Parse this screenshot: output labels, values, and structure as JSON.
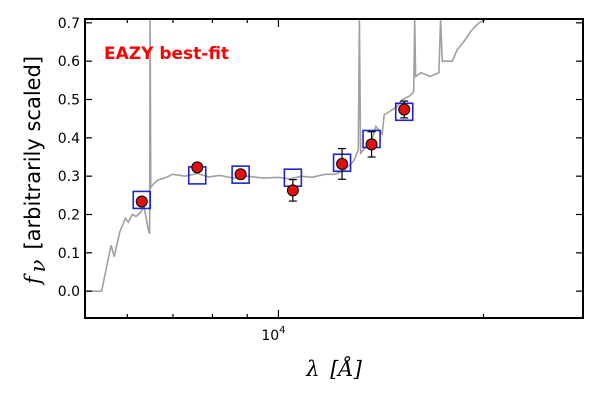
{
  "chart_data": {
    "type": "scatter",
    "title": "",
    "annotation": "EAZY best-fit",
    "xlabel": {
      "symbol": "λ",
      "unit": "[Å]"
    },
    "ylabel": {
      "symbol": "f",
      "subscript": "ν",
      "text": "[arbitrarily scaled]"
    },
    "xscale": "log",
    "xlim": [
      5200,
      28000
    ],
    "ylim": [
      -0.07,
      0.71
    ],
    "x_ticks": [
      {
        "value": 10000,
        "label": "10",
        "exponent": "4"
      }
    ],
    "y_ticks": [
      0.0,
      0.1,
      0.2,
      0.3,
      0.4,
      0.5,
      0.6,
      0.7
    ],
    "y_tick_labels": [
      "0.0",
      "0.1",
      "0.2",
      "0.3",
      "0.4",
      "0.5",
      "0.6",
      "0.7"
    ],
    "grid": false,
    "colors": {
      "template": "#a0a0a0",
      "model_box": "#1f24d0",
      "observed": "#e01010",
      "annotation": "#ff0000",
      "axis": "#000000"
    },
    "model_photometry": [
      {
        "x": 6300,
        "y": 0.238
      },
      {
        "x": 7600,
        "y": 0.302
      },
      {
        "x": 8800,
        "y": 0.304
      },
      {
        "x": 10500,
        "y": 0.296
      },
      {
        "x": 12400,
        "y": 0.335
      },
      {
        "x": 13700,
        "y": 0.397
      },
      {
        "x": 15300,
        "y": 0.468
      }
    ],
    "observed_photometry": [
      {
        "x": 6300,
        "y": 0.234,
        "err": 0.0
      },
      {
        "x": 7600,
        "y": 0.323,
        "err": 0.0
      },
      {
        "x": 8800,
        "y": 0.305,
        "err": 0.0
      },
      {
        "x": 10500,
        "y": 0.263,
        "err": 0.028
      },
      {
        "x": 12400,
        "y": 0.332,
        "err": 0.04
      },
      {
        "x": 13700,
        "y": 0.383,
        "err": 0.033
      },
      {
        "x": 15300,
        "y": 0.474,
        "err": 0.022
      }
    ],
    "template_sed": [
      [
        5200,
        0.0
      ],
      [
        5500,
        0.0
      ],
      [
        5680,
        0.12
      ],
      [
        5740,
        0.09
      ],
      [
        5850,
        0.155
      ],
      [
        5960,
        0.19
      ],
      [
        6020,
        0.18
      ],
      [
        6100,
        0.2
      ],
      [
        6180,
        0.195
      ],
      [
        6270,
        0.205
      ],
      [
        6350,
        0.22
      ],
      [
        6440,
        0.16
      ],
      [
        6470,
        0.15
      ],
      [
        6480,
        0.71
      ],
      [
        6495,
        0.27
      ],
      [
        6560,
        0.28
      ],
      [
        6650,
        0.29
      ],
      [
        6800,
        0.295
      ],
      [
        7000,
        0.305
      ],
      [
        7300,
        0.3
      ],
      [
        7600,
        0.307
      ],
      [
        7900,
        0.298
      ],
      [
        8200,
        0.302
      ],
      [
        8600,
        0.295
      ],
      [
        9000,
        0.3
      ],
      [
        9500,
        0.295
      ],
      [
        10000,
        0.297
      ],
      [
        10400,
        0.293
      ],
      [
        10800,
        0.3
      ],
      [
        11200,
        0.297
      ],
      [
        11700,
        0.305
      ],
      [
        12100,
        0.305
      ],
      [
        12500,
        0.315
      ],
      [
        12900,
        0.34
      ],
      [
        13100,
        0.37
      ],
      [
        13150,
        0.71
      ],
      [
        13200,
        0.36
      ],
      [
        13500,
        0.38
      ],
      [
        13700,
        0.39
      ],
      [
        13900,
        0.43
      ],
      [
        14200,
        0.41
      ],
      [
        14300,
        0.46
      ],
      [
        14600,
        0.47
      ],
      [
        14900,
        0.48
      ],
      [
        15200,
        0.5
      ],
      [
        15600,
        0.51
      ],
      [
        15800,
        0.52
      ],
      [
        15850,
        0.71
      ],
      [
        15900,
        0.56
      ],
      [
        16200,
        0.57
      ],
      [
        16700,
        0.56
      ],
      [
        17200,
        0.57
      ],
      [
        17300,
        0.71
      ],
      [
        17400,
        0.6
      ],
      [
        17700,
        0.6
      ],
      [
        18000,
        0.6
      ],
      [
        18300,
        0.63
      ],
      [
        18700,
        0.65
      ],
      [
        19200,
        0.68
      ],
      [
        19700,
        0.7
      ],
      [
        20200,
        0.71
      ]
    ]
  }
}
